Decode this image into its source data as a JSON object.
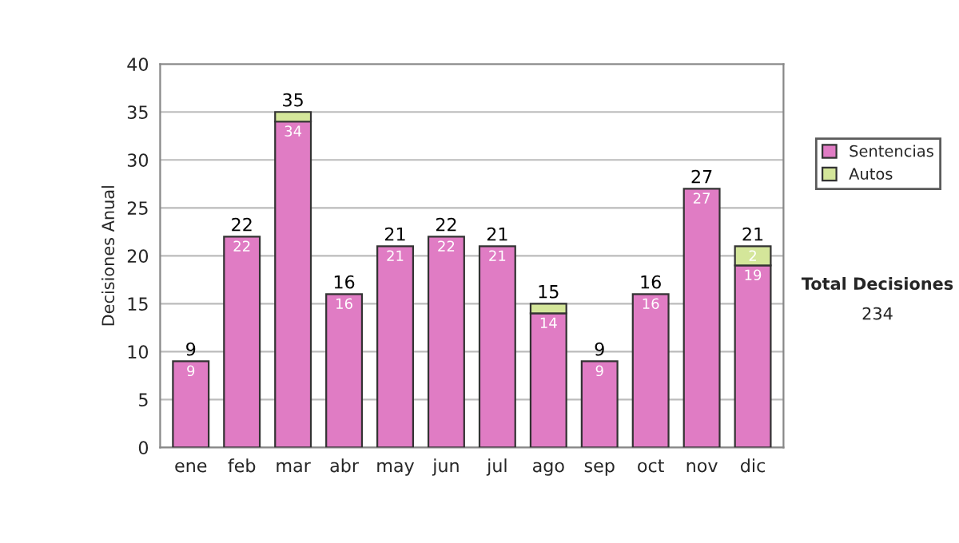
{
  "chart_data": {
    "type": "bar",
    "stacked": true,
    "ylabel": "Decisiones Anual",
    "categories": [
      "ene",
      "feb",
      "mar",
      "abr",
      "may",
      "jun",
      "jul",
      "ago",
      "sep",
      "oct",
      "nov",
      "dic"
    ],
    "series": [
      {
        "name": "Sentencias",
        "color": "#e07cc4",
        "values": [
          9,
          22,
          34,
          16,
          21,
          22,
          21,
          14,
          9,
          16,
          27,
          19
        ],
        "value_labels": [
          "9",
          "22",
          "34",
          "16",
          "21",
          "22",
          "21",
          "14",
          "9",
          "16",
          "27",
          "19"
        ]
      },
      {
        "name": "Autos",
        "color": "#d4e69a",
        "values": [
          null,
          null,
          1,
          null,
          null,
          null,
          null,
          1,
          null,
          null,
          null,
          2
        ],
        "value_labels": [
          null,
          null,
          null,
          null,
          null,
          null,
          null,
          null,
          null,
          null,
          null,
          "2"
        ]
      }
    ],
    "totals": [
      "9",
      "22",
      "35",
      "16",
      "21",
      "22",
      "21",
      "15",
      "9",
      "16",
      "27",
      "21"
    ],
    "ylim": [
      0,
      40
    ],
    "yticks": [
      0,
      5,
      10,
      15,
      20,
      25,
      30,
      35,
      40
    ],
    "grid": "y",
    "legend": "right",
    "annotations": [
      "Total Decisiones",
      "234"
    ]
  }
}
